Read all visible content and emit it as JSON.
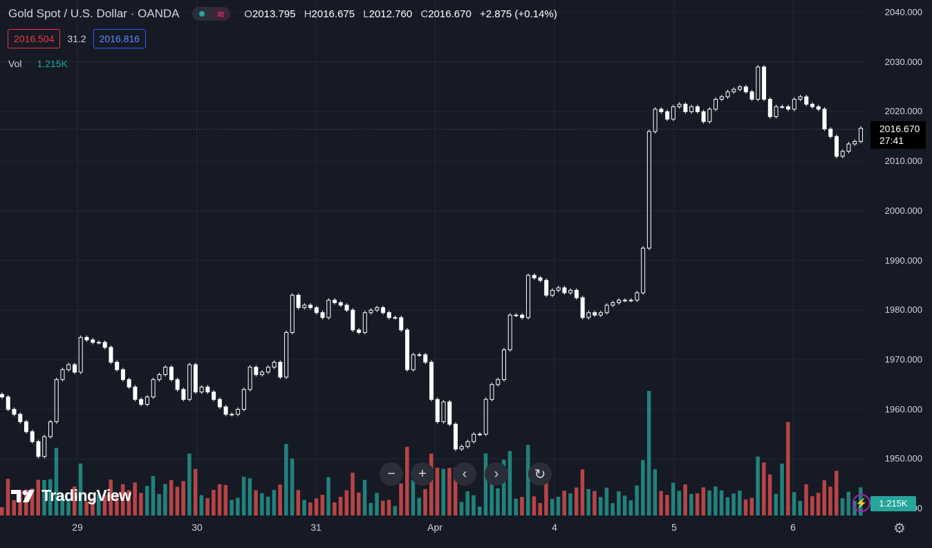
{
  "header": {
    "symbol_title": "Gold Spot / U.S. Dollar · OANDA",
    "ohlc": {
      "o_label": "O",
      "o": "2013.795",
      "h_label": "H",
      "h": "2016.675",
      "l_label": "L",
      "l": "2012.760",
      "c_label": "C",
      "c": "2016.670",
      "change": "+2.875 (+0.14%)"
    },
    "bid": "2016.504",
    "spread": "31.2",
    "ask": "2016.816",
    "vol_label": "Vol",
    "vol_value": "1.215K"
  },
  "price_tag": {
    "price": "2016.670",
    "countdown": "27:41"
  },
  "volume_tag": "1.215K",
  "logo_text": "TradingView",
  "colors": {
    "background": "#161a25",
    "up": "#26a69a",
    "down": "#ef5350",
    "candle_body": "#ffffff",
    "grid": "#232733"
  },
  "icons": [
    "minus-icon",
    "plus-icon",
    "chevron-left-icon",
    "chevron-right-icon",
    "reset-icon",
    "bolt-icon",
    "gear-icon"
  ],
  "chart_data": {
    "type": "candlestick",
    "y_ticks": [
      "2040.000",
      "2030.000",
      "2020.000",
      "2010.000",
      "2000.000",
      "1990.000",
      "1980.000",
      "1970.000",
      "1960.000",
      "1950.000",
      "1940.000"
    ],
    "ylim": [
      1940,
      2040
    ],
    "x_ticks": [
      "29",
      "30",
      "31",
      "Apr",
      "4",
      "5",
      "6"
    ],
    "close": [
      1962.5,
      1960.0,
      1959.0,
      1957.5,
      1955.5,
      1953.5,
      1950.5,
      1954.5,
      1957.5,
      1966.0,
      1968.0,
      1969.0,
      1967.5,
      1974.5,
      1974.0,
      1973.5,
      1973.5,
      1972.5,
      1969.5,
      1968.0,
      1966.0,
      1964.5,
      1962.0,
      1961.0,
      1962.5,
      1966.0,
      1967.0,
      1968.5,
      1966.0,
      1964.0,
      1962.0,
      1969.0,
      1963.5,
      1964.5,
      1963.5,
      1962.0,
      1960.5,
      1959.0,
      1959.0,
      1960.0,
      1964.0,
      1968.5,
      1967.0,
      1967.5,
      1968.5,
      1969.5,
      1966.5,
      1975.5,
      1983.0,
      1980.5,
      1981.0,
      1980.5,
      1979.5,
      1978.5,
      1982.0,
      1981.5,
      1981.0,
      1980.0,
      1976.0,
      1975.5,
      1979.5,
      1980.0,
      1980.5,
      1979.5,
      1978.5,
      1978.5,
      1976.0,
      1968.0,
      1971.0,
      1971.0,
      1969.5,
      1962.0,
      1957.5,
      1961.5,
      1957.0,
      1952.0,
      1952.5,
      1953.5,
      1955.0,
      1955.0,
      1962.0,
      1965.0,
      1966.0,
      1972.0,
      1979.0,
      1979.0,
      1978.5,
      1987.0,
      1986.5,
      1986.0,
      1983.0,
      1984.0,
      1984.5,
      1983.5,
      1984.0,
      1982.5,
      1978.5,
      1979.5,
      1979.0,
      1979.5,
      1981.0,
      1981.5,
      1982.0,
      1982.0,
      1982.0,
      1983.5,
      1992.5,
      2016.0,
      2020.5,
      2020.0,
      2018.5,
      2021.0,
      2021.5,
      2020.0,
      2021.0,
      2020.0,
      2018.0,
      2020.5,
      2022.5,
      2023.0,
      2024.0,
      2024.5,
      2025.0,
      2024.0,
      2022.5,
      2029.0,
      2022.5,
      2019.0,
      2021.0,
      2021.0,
      2020.5,
      2022.5,
      2023.0,
      2021.5,
      2021.0,
      2020.5,
      2016.5,
      2015.0,
      2011.0,
      2012.0,
      2013.5,
      2014.0,
      2016.67
    ],
    "volume_up_color": "#26a69a",
    "volume_down_color": "#ef5350",
    "volume_axis_max": "1.215K"
  }
}
